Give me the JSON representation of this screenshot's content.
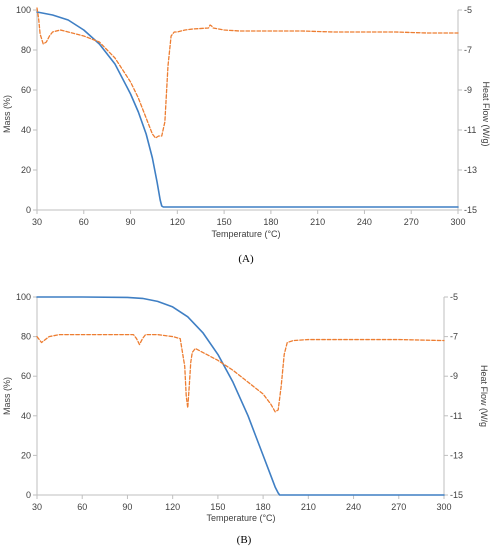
{
  "colors": {
    "mass_line": "#3f7fc4",
    "heat_flow_line": "#ed7d31",
    "axis": "#bfbfbf",
    "text": "#404040"
  },
  "chart_data": [
    {
      "type": "line",
      "caption": "(A)",
      "xlabel": "Temperature (°C)",
      "ylabel_left": "Mass (%)",
      "ylabel_right": "Heat Flow (W/g)",
      "xlim": [
        30,
        300
      ],
      "ylim_left": [
        0,
        100
      ],
      "ylim_right": [
        -15,
        -5
      ],
      "x_ticks": [
        30,
        60,
        90,
        120,
        150,
        180,
        210,
        240,
        270,
        300
      ],
      "y_left_ticks": [
        0,
        20,
        40,
        60,
        80,
        100
      ],
      "y_right_ticks": [
        -15,
        -13,
        -11,
        -9,
        -7,
        -5
      ],
      "grid": false,
      "series": [
        {
          "axis": "left",
          "style": "solid",
          "color": "#3f7fc4",
          "x": [
            30,
            40,
            50,
            60,
            70,
            80,
            90,
            95,
            100,
            104,
            107,
            109,
            110,
            111,
            115,
            150,
            200,
            250,
            300
          ],
          "y": [
            99,
            97.5,
            95,
            90,
            83,
            73,
            58,
            49,
            38,
            26,
            14,
            5,
            2,
            1.5,
            1.5,
            1.5,
            1.5,
            1.5,
            1.5
          ]
        },
        {
          "axis": "right",
          "style": "dashed",
          "color": "#ed7d31",
          "x": [
            30,
            31,
            32,
            34,
            36,
            38,
            40,
            45,
            50,
            60,
            70,
            80,
            90,
            95,
            100,
            104,
            106,
            108,
            110,
            112,
            114,
            116,
            118,
            120,
            125,
            130,
            140,
            141,
            142,
            143,
            150,
            160,
            180,
            200,
            220,
            240,
            260,
            280,
            300
          ],
          "y": [
            -4.9,
            -5.4,
            -6.2,
            -6.7,
            -6.6,
            -6.3,
            -6.1,
            -6.0,
            -6.1,
            -6.3,
            -6.6,
            -7.4,
            -8.6,
            -9.4,
            -10.4,
            -11.2,
            -11.4,
            -11.3,
            -11.3,
            -10.6,
            -7.8,
            -6.3,
            -6.1,
            -6.1,
            -6.0,
            -5.95,
            -5.9,
            -5.75,
            -5.8,
            -5.9,
            -6.0,
            -6.05,
            -6.05,
            -6.05,
            -6.1,
            -6.1,
            -6.1,
            -6.15,
            -6.15
          ]
        }
      ]
    },
    {
      "type": "line",
      "caption": "(B)",
      "xlabel": "Temperature (°C)",
      "ylabel_left": "Mass (%)",
      "ylabel_right": "Heat Flow (W/g",
      "xlim": [
        30,
        300
      ],
      "ylim_left": [
        0,
        100
      ],
      "ylim_right": [
        -15,
        -5
      ],
      "x_ticks": [
        30,
        60,
        90,
        120,
        150,
        180,
        210,
        240,
        270,
        300
      ],
      "y_left_ticks": [
        0,
        20,
        40,
        60,
        80,
        100
      ],
      "y_right_ticks": [
        -15,
        -13,
        -11,
        -9,
        -7,
        -5
      ],
      "grid": false,
      "series": [
        {
          "axis": "left",
          "style": "solid",
          "color": "#3f7fc4",
          "x": [
            30,
            60,
            90,
            100,
            110,
            120,
            130,
            140,
            150,
            160,
            170,
            175,
            180,
            185,
            188,
            190,
            191,
            200,
            250,
            300
          ],
          "y": [
            100,
            100,
            99.8,
            99.3,
            97.8,
            95,
            90,
            82,
            71,
            57,
            40,
            30,
            20,
            10,
            4,
            1,
            0,
            0,
            0,
            0
          ]
        },
        {
          "axis": "right",
          "style": "dashed",
          "color": "#ed7d31",
          "x": [
            30,
            33,
            38,
            45,
            60,
            80,
            94,
            96,
            98,
            100,
            102,
            110,
            120,
            125,
            128,
            129,
            130,
            131,
            132,
            133,
            135,
            140,
            145,
            150,
            160,
            170,
            180,
            185,
            188,
            190,
            192,
            194,
            196,
            200,
            210,
            240,
            270,
            300
          ],
          "y": [
            -7.0,
            -7.3,
            -7.0,
            -6.9,
            -6.9,
            -6.9,
            -6.9,
            -7.1,
            -7.4,
            -7.1,
            -6.9,
            -6.9,
            -7.0,
            -7.1,
            -8.5,
            -10.0,
            -10.6,
            -9.5,
            -8.3,
            -7.8,
            -7.6,
            -7.8,
            -8.0,
            -8.2,
            -8.7,
            -9.3,
            -9.9,
            -10.4,
            -10.8,
            -10.7,
            -9.5,
            -7.9,
            -7.3,
            -7.2,
            -7.15,
            -7.15,
            -7.15,
            -7.2
          ]
        }
      ]
    }
  ]
}
